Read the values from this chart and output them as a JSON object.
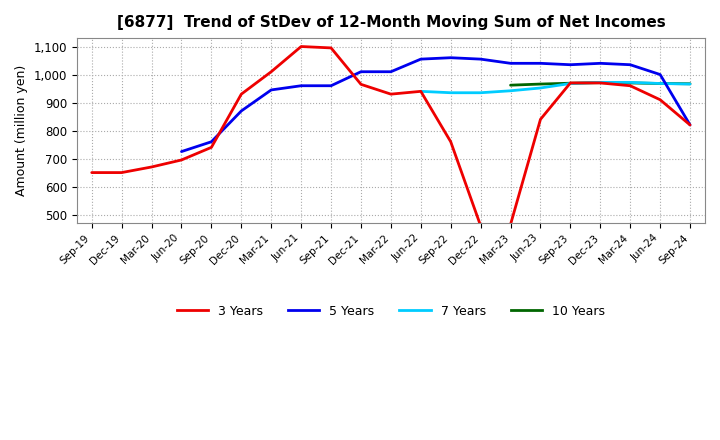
{
  "title": "[6877]  Trend of StDev of 12-Month Moving Sum of Net Incomes",
  "ylabel": "Amount (million yen)",
  "background_color": "#ffffff",
  "grid_color": "#aaaaaa",
  "x_labels": [
    "Sep-19",
    "Dec-19",
    "Mar-20",
    "Jun-20",
    "Sep-20",
    "Dec-20",
    "Mar-21",
    "Jun-21",
    "Sep-21",
    "Dec-21",
    "Mar-22",
    "Jun-22",
    "Sep-22",
    "Dec-22",
    "Mar-23",
    "Jun-23",
    "Sep-23",
    "Dec-23",
    "Mar-24",
    "Jun-24",
    "Sep-24"
  ],
  "series": {
    "3 Years": {
      "color": "#ee0000",
      "linewidth": 2.0,
      "data_indices": [
        0,
        1,
        2,
        3,
        4,
        5,
        6,
        7,
        8,
        9,
        10,
        11,
        12,
        13,
        14,
        15,
        16,
        17,
        18,
        19,
        20
      ],
      "values": [
        650,
        650,
        670,
        695,
        740,
        930,
        1010,
        1100,
        1095,
        965,
        930,
        940,
        760,
        460,
        465,
        840,
        970,
        970,
        960,
        910,
        820
      ]
    },
    "5 Years": {
      "color": "#0000ee",
      "linewidth": 2.0,
      "data_indices": [
        3,
        4,
        5,
        6,
        7,
        8,
        9,
        10,
        11,
        12,
        13,
        14,
        15,
        16,
        17,
        18,
        19,
        20
      ],
      "values": [
        725,
        760,
        870,
        945,
        960,
        960,
        1010,
        1010,
        1055,
        1060,
        1055,
        1040,
        1040,
        1035,
        1040,
        1035,
        1000,
        820
      ]
    },
    "7 Years": {
      "color": "#00ccff",
      "linewidth": 2.0,
      "data_indices": [
        11,
        12,
        13,
        14,
        15,
        16,
        17,
        18,
        19,
        20
      ],
      "values": [
        940,
        935,
        935,
        942,
        952,
        968,
        972,
        972,
        968,
        966
      ]
    },
    "10 Years": {
      "color": "#006600",
      "linewidth": 2.0,
      "data_indices": [
        14,
        15,
        16,
        17,
        18,
        19,
        20
      ],
      "values": [
        962,
        966,
        969,
        971,
        970,
        968,
        967
      ]
    }
  },
  "ylim": [
    470,
    1130
  ],
  "yticks": [
    500,
    600,
    700,
    800,
    900,
    1000,
    1100
  ],
  "legend_labels": [
    "3 Years",
    "5 Years",
    "7 Years",
    "10 Years"
  ],
  "legend_colors": [
    "#ee0000",
    "#0000ee",
    "#00ccff",
    "#006600"
  ]
}
